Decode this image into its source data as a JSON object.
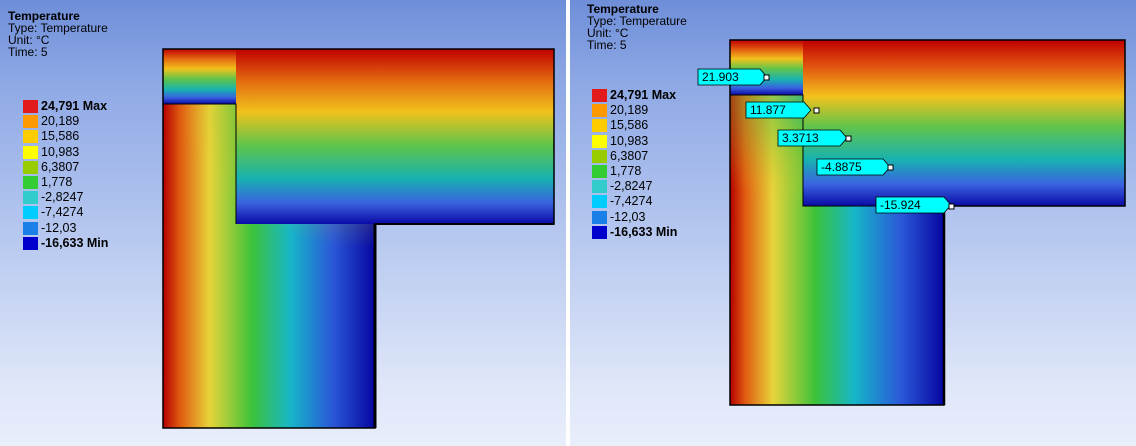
{
  "panels": [
    {
      "title": "Temperature",
      "type": "Type: Temperature",
      "unit": "Unit: °C",
      "time": "Time: 5"
    },
    {
      "title": "Temperature",
      "type": "Type: Temperature",
      "unit": "Unit: °C",
      "time": "Time: 5"
    }
  ],
  "legend": {
    "entries": [
      "24,791 Max",
      "20,189",
      "15,586",
      "10,983",
      "6,3807",
      "1,778",
      "-2,8247",
      "-7,4274",
      "-12,03",
      "-16,633 Min"
    ],
    "colors": [
      "#e31a1c",
      "#ff9900",
      "#ffcc00",
      "#ffff00",
      "#99cc00",
      "#33cc33",
      "#33cccc",
      "#00ccff",
      "#1a7fe6",
      "#0000cc"
    ]
  },
  "probes": [
    "21.903",
    "11.877",
    "3.3713",
    "-4.8875",
    "-15.924"
  ],
  "colors": {
    "probe_fill": "#00ffff",
    "hot": "#b40000",
    "cold": "#0000a0"
  }
}
